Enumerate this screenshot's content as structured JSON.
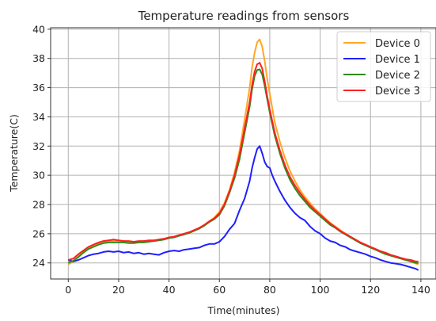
{
  "chart_data": {
    "type": "line",
    "title": "Temperature readings from sensors",
    "xlabel": "Time(minutes)",
    "ylabel": "Temperature(C)",
    "xlim": [
      -7,
      146
    ],
    "ylim": [
      22.9,
      40.1
    ],
    "xticks": [
      0,
      20,
      40,
      60,
      80,
      100,
      120,
      140
    ],
    "yticks": [
      24,
      26,
      28,
      30,
      32,
      34,
      36,
      38,
      40
    ],
    "grid": true,
    "legend_position": "top-right",
    "series": [
      {
        "name": "Device 0",
        "color": "#ffa726",
        "x": [
          0,
          2,
          4,
          6,
          8,
          10,
          12,
          14,
          16,
          18,
          20,
          22,
          24,
          26,
          28,
          30,
          32,
          34,
          36,
          38,
          40,
          42,
          44,
          46,
          48,
          50,
          52,
          54,
          56,
          58,
          60,
          62,
          64,
          66,
          68,
          70,
          72,
          73,
          74,
          75,
          76,
          77,
          78,
          79,
          80,
          81,
          82,
          84,
          86,
          88,
          90,
          92,
          94,
          96,
          98,
          100,
          102,
          104,
          106,
          108,
          110,
          112,
          114,
          116,
          118,
          120,
          122,
          124,
          126,
          128,
          130,
          132,
          134,
          136,
          138,
          139
        ],
        "y": [
          23.9,
          24.1,
          24.5,
          24.8,
          25.0,
          25.2,
          25.3,
          25.4,
          25.5,
          25.5,
          25.5,
          25.5,
          25.45,
          25.4,
          25.45,
          25.5,
          25.5,
          25.55,
          25.6,
          25.65,
          25.7,
          25.8,
          25.9,
          26.0,
          26.1,
          26.25,
          26.4,
          26.6,
          26.85,
          27.1,
          27.5,
          28.1,
          29.0,
          30.2,
          31.7,
          33.8,
          36.0,
          37.4,
          38.4,
          39.1,
          39.3,
          38.8,
          37.8,
          36.6,
          35.6,
          34.6,
          33.6,
          32.3,
          31.2,
          30.3,
          29.6,
          29.0,
          28.5,
          28.1,
          27.7,
          27.4,
          27.05,
          26.75,
          26.5,
          26.25,
          26.0,
          25.8,
          25.6,
          25.4,
          25.25,
          25.1,
          24.95,
          24.8,
          24.65,
          24.5,
          24.4,
          24.3,
          24.2,
          24.1,
          23.95,
          23.9
        ]
      },
      {
        "name": "Device 1",
        "color": "#1f1fff",
        "x": [
          0,
          2,
          4,
          6,
          8,
          10,
          12,
          14,
          16,
          18,
          20,
          22,
          24,
          26,
          28,
          30,
          32,
          34,
          36,
          38,
          40,
          42,
          44,
          46,
          48,
          50,
          52,
          54,
          56,
          58,
          60,
          62,
          64,
          66,
          68,
          70,
          72,
          73,
          74,
          75,
          76,
          77,
          78,
          79,
          80,
          81,
          82,
          84,
          86,
          88,
          90,
          92,
          94,
          96,
          98,
          100,
          102,
          104,
          106,
          108,
          110,
          112,
          114,
          116,
          118,
          120,
          122,
          124,
          126,
          128,
          130,
          132,
          134,
          136,
          138,
          139
        ],
        "y": [
          24.2,
          24.1,
          24.2,
          24.35,
          24.5,
          24.6,
          24.65,
          24.75,
          24.8,
          24.75,
          24.8,
          24.7,
          24.75,
          24.65,
          24.7,
          24.6,
          24.65,
          24.6,
          24.55,
          24.7,
          24.8,
          24.85,
          24.8,
          24.9,
          24.95,
          25.0,
          25.05,
          25.2,
          25.3,
          25.3,
          25.45,
          25.8,
          26.3,
          26.7,
          27.6,
          28.4,
          29.6,
          30.5,
          31.2,
          31.8,
          32.0,
          31.5,
          30.9,
          30.6,
          30.5,
          30.0,
          29.6,
          28.9,
          28.3,
          27.8,
          27.4,
          27.1,
          26.9,
          26.5,
          26.2,
          26.0,
          25.7,
          25.5,
          25.4,
          25.2,
          25.1,
          24.9,
          24.8,
          24.7,
          24.6,
          24.45,
          24.35,
          24.2,
          24.1,
          24.0,
          23.95,
          23.9,
          23.8,
          23.7,
          23.6,
          23.5
        ]
      },
      {
        "name": "Device 2",
        "color": "#2e8b1e",
        "x": [
          0,
          2,
          4,
          6,
          8,
          10,
          12,
          14,
          16,
          18,
          20,
          22,
          24,
          26,
          28,
          30,
          32,
          34,
          36,
          38,
          40,
          42,
          44,
          46,
          48,
          50,
          52,
          54,
          56,
          58,
          60,
          62,
          64,
          66,
          68,
          70,
          72,
          73,
          74,
          75,
          76,
          77,
          78,
          79,
          80,
          81,
          82,
          84,
          86,
          88,
          90,
          92,
          94,
          96,
          98,
          100,
          102,
          104,
          106,
          108,
          110,
          112,
          114,
          116,
          118,
          120,
          122,
          124,
          126,
          128,
          130,
          132,
          134,
          136,
          138,
          139
        ],
        "y": [
          24.0,
          24.15,
          24.4,
          24.7,
          24.95,
          25.1,
          25.25,
          25.35,
          25.4,
          25.4,
          25.4,
          25.4,
          25.35,
          25.35,
          25.4,
          25.4,
          25.45,
          25.5,
          25.55,
          25.6,
          25.7,
          25.75,
          25.85,
          25.95,
          26.05,
          26.2,
          26.35,
          26.55,
          26.8,
          27.0,
          27.3,
          27.9,
          28.8,
          29.8,
          31.1,
          32.9,
          34.7,
          35.9,
          36.8,
          37.2,
          37.25,
          36.9,
          36.1,
          35.2,
          34.3,
          33.5,
          32.7,
          31.5,
          30.5,
          29.7,
          29.1,
          28.6,
          28.2,
          27.8,
          27.5,
          27.2,
          26.9,
          26.6,
          26.4,
          26.15,
          25.95,
          25.75,
          25.55,
          25.35,
          25.2,
          25.05,
          24.9,
          24.75,
          24.6,
          24.5,
          24.4,
          24.3,
          24.2,
          24.1,
          24.0,
          24.0
        ]
      },
      {
        "name": "Device 3",
        "color": "#ff2020",
        "x": [
          0,
          2,
          4,
          6,
          8,
          10,
          12,
          14,
          16,
          18,
          20,
          22,
          24,
          26,
          28,
          30,
          32,
          34,
          36,
          38,
          40,
          42,
          44,
          46,
          48,
          50,
          52,
          54,
          56,
          58,
          60,
          62,
          64,
          66,
          68,
          70,
          72,
          73,
          74,
          75,
          76,
          77,
          78,
          79,
          80,
          81,
          82,
          84,
          86,
          88,
          90,
          92,
          94,
          96,
          98,
          100,
          102,
          104,
          106,
          108,
          110,
          112,
          114,
          116,
          118,
          120,
          122,
          124,
          126,
          128,
          130,
          132,
          134,
          136,
          138,
          139
        ],
        "y": [
          24.2,
          24.3,
          24.6,
          24.85,
          25.1,
          25.25,
          25.4,
          25.5,
          25.55,
          25.6,
          25.55,
          25.5,
          25.5,
          25.45,
          25.5,
          25.5,
          25.55,
          25.55,
          25.6,
          25.65,
          25.75,
          25.8,
          25.9,
          26.0,
          26.1,
          26.25,
          26.4,
          26.6,
          26.85,
          27.05,
          27.4,
          28.0,
          28.9,
          30.0,
          31.4,
          33.2,
          35.0,
          36.2,
          37.1,
          37.6,
          37.7,
          37.3,
          36.4,
          35.4,
          34.5,
          33.7,
          32.9,
          31.7,
          30.7,
          29.9,
          29.3,
          28.8,
          28.35,
          27.95,
          27.6,
          27.3,
          27.0,
          26.7,
          26.45,
          26.2,
          26.0,
          25.8,
          25.6,
          25.4,
          25.25,
          25.1,
          24.95,
          24.8,
          24.7,
          24.55,
          24.45,
          24.35,
          24.25,
          24.2,
          24.1,
          24.1
        ]
      }
    ]
  }
}
